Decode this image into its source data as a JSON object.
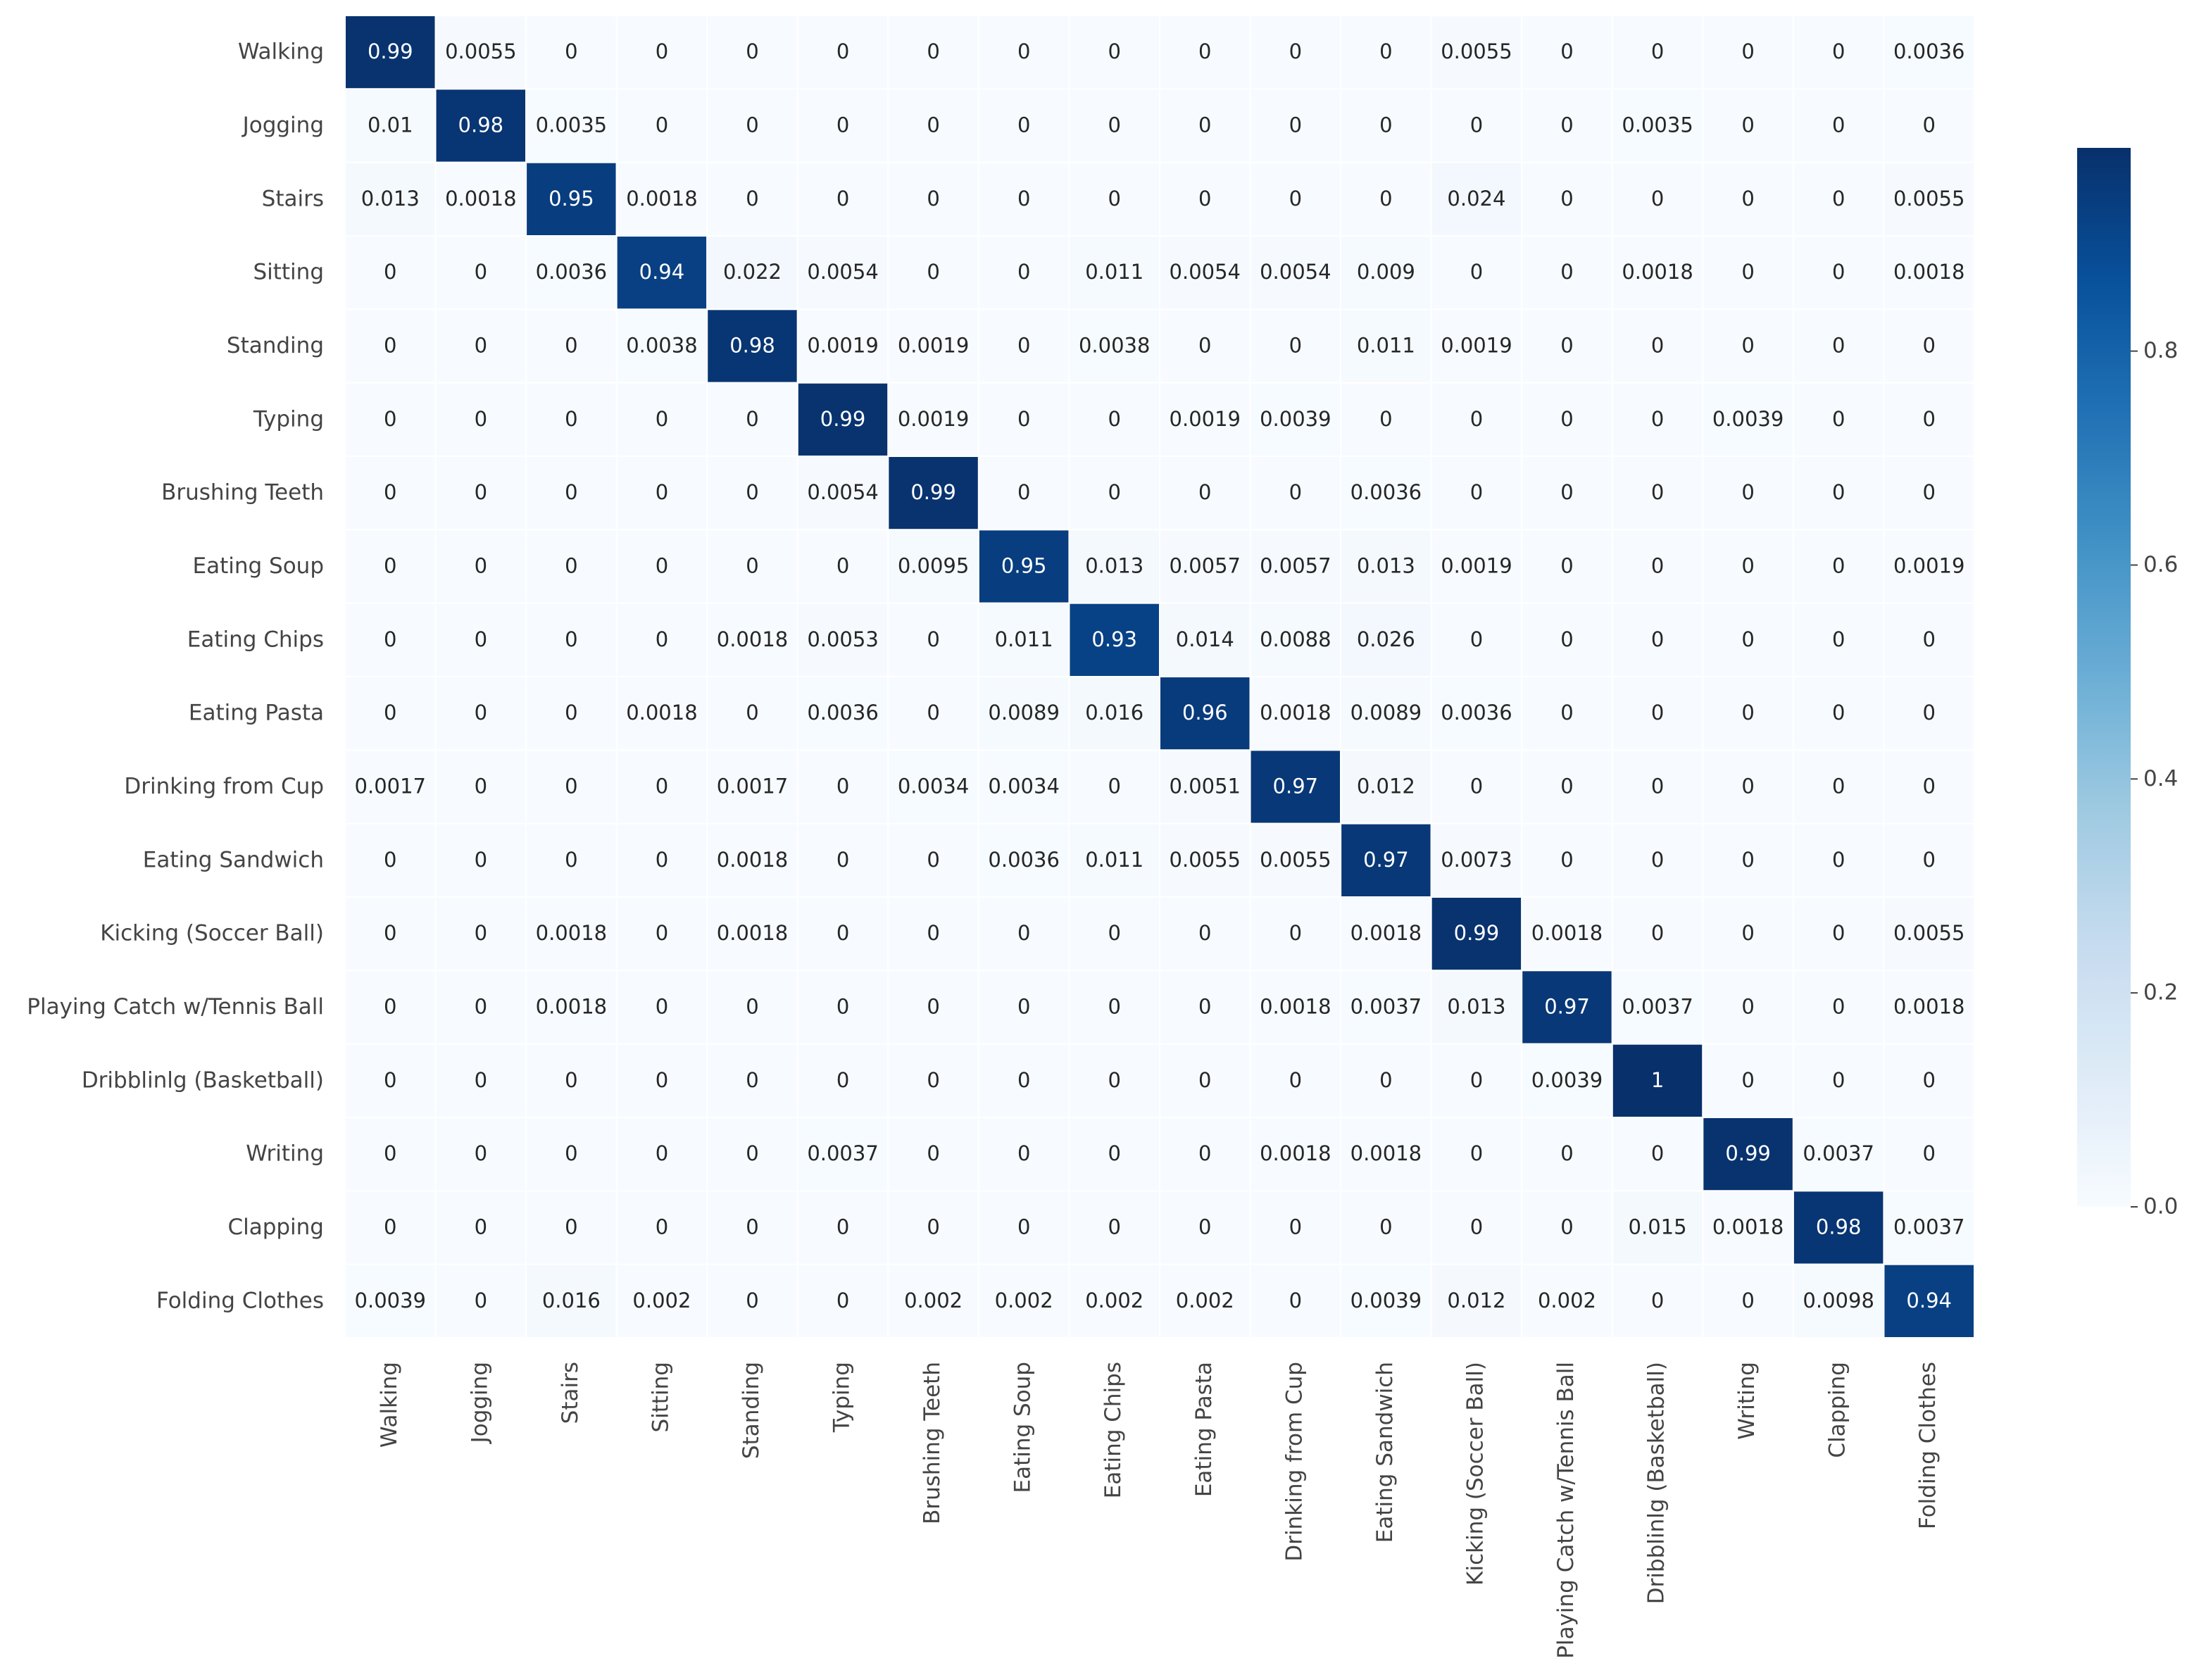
{
  "chart_data": {
    "type": "heatmap",
    "title": "",
    "xlabel": "",
    "ylabel": "",
    "rows": [
      "Walking",
      "Jogging",
      "Stairs",
      "Sitting",
      "Standing",
      "Typing",
      "Brushing Teeth",
      "Eating Soup",
      "Eating Chips",
      "Eating Pasta",
      "Drinking from Cup",
      "Eating Sandwich",
      "Kicking (Soccer Ball)",
      "Playing Catch w/Tennis Ball",
      "Dribblinlg (Basketball)",
      "Writing",
      "Clapping",
      "Folding Clothes"
    ],
    "columns": [
      "Walking",
      "Jogging",
      "Stairs",
      "Sitting",
      "Standing",
      "Typing",
      "Brushing Teeth",
      "Eating Soup",
      "Eating Chips",
      "Eating Pasta",
      "Drinking from Cup",
      "Eating Sandwich",
      "Kicking (Soccer Ball)",
      "Playing Catch w/Tennis Ball",
      "Dribblinlg (Basketball)",
      "Writing",
      "Clapping",
      "Folding Clothes"
    ],
    "values": [
      [
        "0.99",
        "0.0055",
        "0",
        "0",
        "0",
        "0",
        "0",
        "0",
        "0",
        "0",
        "0",
        "0",
        "0.0055",
        "0",
        "0",
        "0",
        "0",
        "0.0036"
      ],
      [
        "0.01",
        "0.98",
        "0.0035",
        "0",
        "0",
        "0",
        "0",
        "0",
        "0",
        "0",
        "0",
        "0",
        "0",
        "0",
        "0.0035",
        "0",
        "0",
        "0"
      ],
      [
        "0.013",
        "0.0018",
        "0.95",
        "0.0018",
        "0",
        "0",
        "0",
        "0",
        "0",
        "0",
        "0",
        "0",
        "0.024",
        "0",
        "0",
        "0",
        "0",
        "0.0055"
      ],
      [
        "0",
        "0",
        "0.0036",
        "0.94",
        "0.022",
        "0.0054",
        "0",
        "0",
        "0.011",
        "0.0054",
        "0.0054",
        "0.009",
        "0",
        "0",
        "0.0018",
        "0",
        "0",
        "0.0018"
      ],
      [
        "0",
        "0",
        "0",
        "0.0038",
        "0.98",
        "0.0019",
        "0.0019",
        "0",
        "0.0038",
        "0",
        "0",
        "0.011",
        "0.0019",
        "0",
        "0",
        "0",
        "0",
        "0"
      ],
      [
        "0",
        "0",
        "0",
        "0",
        "0",
        "0.99",
        "0.0019",
        "0",
        "0",
        "0.0019",
        "0.0039",
        "0",
        "0",
        "0",
        "0",
        "0.0039",
        "0",
        "0"
      ],
      [
        "0",
        "0",
        "0",
        "0",
        "0",
        "0.0054",
        "0.99",
        "0",
        "0",
        "0",
        "0",
        "0.0036",
        "0",
        "0",
        "0",
        "0",
        "0",
        "0"
      ],
      [
        "0",
        "0",
        "0",
        "0",
        "0",
        "0",
        "0.0095",
        "0.95",
        "0.013",
        "0.0057",
        "0.0057",
        "0.013",
        "0.0019",
        "0",
        "0",
        "0",
        "0",
        "0.0019"
      ],
      [
        "0",
        "0",
        "0",
        "0",
        "0.0018",
        "0.0053",
        "0",
        "0.011",
        "0.93",
        "0.014",
        "0.0088",
        "0.026",
        "0",
        "0",
        "0",
        "0",
        "0",
        "0"
      ],
      [
        "0",
        "0",
        "0",
        "0.0018",
        "0",
        "0.0036",
        "0",
        "0.0089",
        "0.016",
        "0.96",
        "0.0018",
        "0.0089",
        "0.0036",
        "0",
        "0",
        "0",
        "0",
        "0"
      ],
      [
        "0.0017",
        "0",
        "0",
        "0",
        "0.0017",
        "0",
        "0.0034",
        "0.0034",
        "0",
        "0.0051",
        "0.97",
        "0.012",
        "0",
        "0",
        "0",
        "0",
        "0",
        "0"
      ],
      [
        "0",
        "0",
        "0",
        "0",
        "0.0018",
        "0",
        "0",
        "0.0036",
        "0.011",
        "0.0055",
        "0.0055",
        "0.97",
        "0.0073",
        "0",
        "0",
        "0",
        "0",
        "0"
      ],
      [
        "0",
        "0",
        "0.0018",
        "0",
        "0.0018",
        "0",
        "0",
        "0",
        "0",
        "0",
        "0",
        "0.0018",
        "0.99",
        "0.0018",
        "0",
        "0",
        "0",
        "0.0055"
      ],
      [
        "0",
        "0",
        "0.0018",
        "0",
        "0",
        "0",
        "0",
        "0",
        "0",
        "0",
        "0.0018",
        "0.0037",
        "0.013",
        "0.97",
        "0.0037",
        "0",
        "0",
        "0.0018"
      ],
      [
        "0",
        "0",
        "0",
        "0",
        "0",
        "0",
        "0",
        "0",
        "0",
        "0",
        "0",
        "0",
        "0",
        "0.0039",
        "1",
        "0",
        "0",
        "0"
      ],
      [
        "0",
        "0",
        "0",
        "0",
        "0",
        "0.0037",
        "0",
        "0",
        "0",
        "0",
        "0.0018",
        "0.0018",
        "0",
        "0",
        "0",
        "0.99",
        "0.0037",
        "0"
      ],
      [
        "0",
        "0",
        "0",
        "0",
        "0",
        "0",
        "0",
        "0",
        "0",
        "0",
        "0",
        "0",
        "0",
        "0",
        "0.015",
        "0.0018",
        "0.98",
        "0.0037"
      ],
      [
        "0.0039",
        "0",
        "0.016",
        "0.002",
        "0",
        "0",
        "0.002",
        "0.002",
        "0.002",
        "0.002",
        "0",
        "0.0039",
        "0.012",
        "0.002",
        "0",
        "0",
        "0.0098",
        "0.94"
      ]
    ],
    "colormap": "Blues",
    "colormap_stops": [
      "#f7fbff",
      "#deebf7",
      "#c6dbef",
      "#9ecae1",
      "#6baed6",
      "#4292c6",
      "#2171b5",
      "#08519c",
      "#08306b"
    ],
    "vmin": 0,
    "vmax": 1,
    "colorbar": {
      "ticks": [
        0.0,
        0.2,
        0.4,
        0.6,
        0.8
      ],
      "tick_labels": [
        "0.0",
        "0.2",
        "0.4",
        "0.6",
        "0.8"
      ],
      "position": "right"
    },
    "grid": false,
    "legend": "none"
  }
}
